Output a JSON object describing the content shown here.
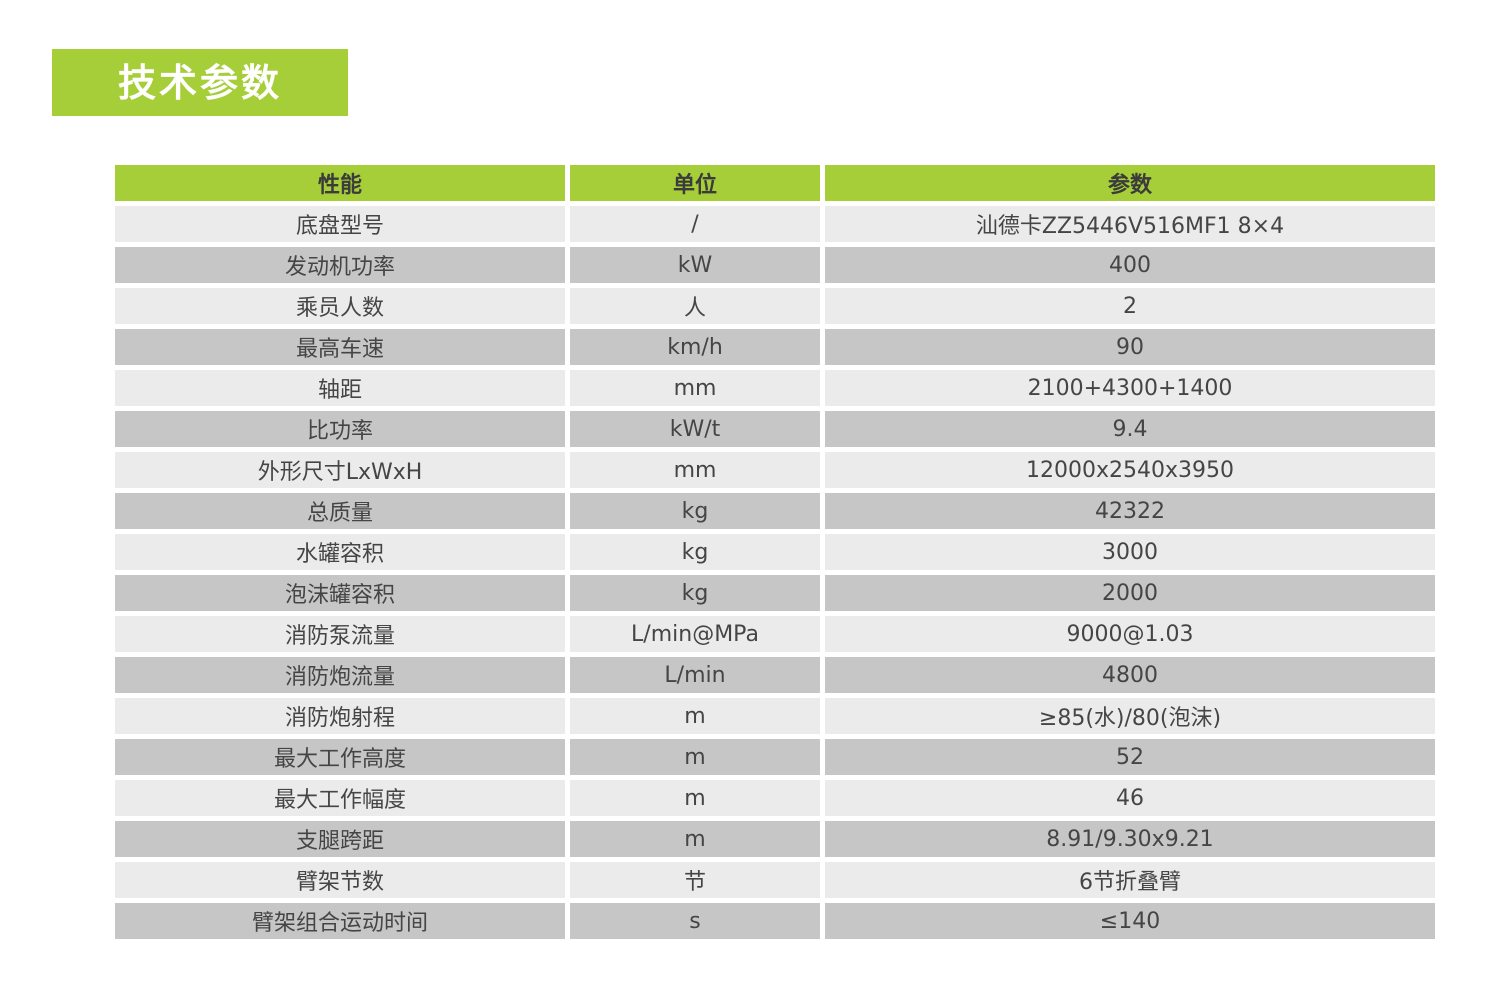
{
  "page": {
    "title": "技术参数",
    "colors": {
      "accent_green": "#a6ce39",
      "row_light": "#ebebeb",
      "row_dark": "#c6c6c6",
      "header_text": "#3b3b3b",
      "body_text": "#454545",
      "title_text": "#ffffff"
    }
  },
  "table": {
    "headers": [
      "性能",
      "单位",
      "参数"
    ],
    "rows": [
      {
        "name": "底盘型号",
        "unit": "/",
        "value": "汕德卡ZZ5446V516MF1 8×4"
      },
      {
        "name": "发动机功率",
        "unit": "kW",
        "value": "400"
      },
      {
        "name": "乘员人数",
        "unit": "人",
        "value": "2"
      },
      {
        "name": "最高车速",
        "unit": "km/h",
        "value": "90"
      },
      {
        "name": "轴距",
        "unit": "mm",
        "value": "2100+4300+1400"
      },
      {
        "name": "比功率",
        "unit": "kW/t",
        "value": "9.4"
      },
      {
        "name": "外形尺寸LxWxH",
        "unit": "mm",
        "value": "12000x2540x3950"
      },
      {
        "name": "总质量",
        "unit": "kg",
        "value": "42322"
      },
      {
        "name": "水罐容积",
        "unit": "kg",
        "value": "3000"
      },
      {
        "name": "泡沫罐容积",
        "unit": "kg",
        "value": "2000"
      },
      {
        "name": "消防泵流量",
        "unit": "L/min@MPa",
        "value": "9000@1.03"
      },
      {
        "name": "消防炮流量",
        "unit": "L/min",
        "value": "4800"
      },
      {
        "name": "消防炮射程",
        "unit": "m",
        "value": "≥85(水)/80(泡沫)"
      },
      {
        "name": "最大工作高度",
        "unit": "m",
        "value": "52"
      },
      {
        "name": "最大工作幅度",
        "unit": "m",
        "value": "46"
      },
      {
        "name": "支腿跨距",
        "unit": "m",
        "value": "8.91/9.30x9.21"
      },
      {
        "name": "臂架节数",
        "unit": "节",
        "value": "6节折叠臂"
      },
      {
        "name": "臂架组合运动时间",
        "unit": "s",
        "value": "≤140"
      }
    ]
  }
}
